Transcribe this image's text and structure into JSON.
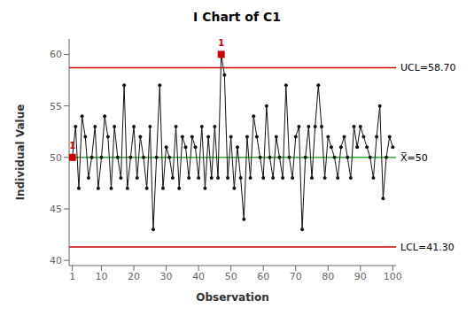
{
  "chart_data": {
    "type": "line",
    "title": "I Chart of C1",
    "x_label": "Observation",
    "y_label": "Individual Value",
    "x": [
      1,
      2,
      3,
      4,
      5,
      6,
      7,
      8,
      9,
      10,
      11,
      12,
      13,
      14,
      15,
      16,
      17,
      18,
      19,
      20,
      21,
      22,
      23,
      24,
      25,
      26,
      27,
      28,
      29,
      30,
      31,
      32,
      33,
      34,
      35,
      36,
      37,
      38,
      39,
      40,
      41,
      42,
      43,
      44,
      45,
      46,
      47,
      48,
      49,
      50,
      51,
      52,
      53,
      54,
      55,
      56,
      57,
      58,
      59,
      60,
      61,
      62,
      63,
      64,
      65,
      66,
      67,
      68,
      69,
      70,
      71,
      72,
      73,
      74,
      75,
      76,
      77,
      78,
      79,
      80,
      81,
      82,
      83,
      84,
      85,
      86,
      87,
      88,
      89,
      90,
      91,
      92,
      93,
      94,
      95,
      96,
      97,
      98,
      99,
      100
    ],
    "values": [
      50,
      53,
      47,
      54,
      52,
      48,
      50,
      53,
      47,
      50,
      54,
      52,
      47,
      53,
      50,
      48,
      57,
      47,
      50,
      53,
      48,
      52,
      50,
      47,
      53,
      43,
      50,
      57,
      47,
      51,
      50,
      48,
      53,
      47,
      52,
      51,
      48,
      52,
      51,
      48,
      53,
      47,
      52,
      48,
      53,
      48,
      60,
      58,
      48,
      52,
      47,
      51,
      48,
      44,
      52,
      48,
      54,
      52,
      50,
      48,
      55,
      50,
      48,
      52,
      50,
      48,
      57,
      50,
      48,
      52,
      53,
      43,
      50,
      53,
      48,
      53,
      57,
      53,
      48,
      52,
      51,
      50,
      48,
      51,
      52,
      50,
      48,
      53,
      51,
      53,
      52,
      51,
      50,
      48,
      52,
      55,
      46,
      50,
      52,
      51
    ],
    "color": "#111111",
    "marker": "circle",
    "xlim": [
      0,
      101
    ],
    "ylim": [
      39.5,
      61.5
    ],
    "xticks": [
      1,
      10,
      20,
      30,
      40,
      50,
      60,
      70,
      80,
      90,
      100
    ],
    "yticks": [
      40,
      45,
      50,
      55,
      60
    ],
    "grid": false,
    "reference_lines": [
      {
        "value": 58.7,
        "label": "UCL=58.70",
        "color": "#cc0000"
      },
      {
        "value": 50.0,
        "label": "X̅=50",
        "color": "#33aa33"
      },
      {
        "value": 41.3,
        "label": "LCL=41.30",
        "color": "#cc0000"
      }
    ],
    "highlights": [
      {
        "x": 1,
        "label": "1",
        "color": "#cc0000",
        "marker": "square"
      },
      {
        "x": 47,
        "label": "1",
        "color": "#cc0000",
        "marker": "square"
      }
    ]
  }
}
